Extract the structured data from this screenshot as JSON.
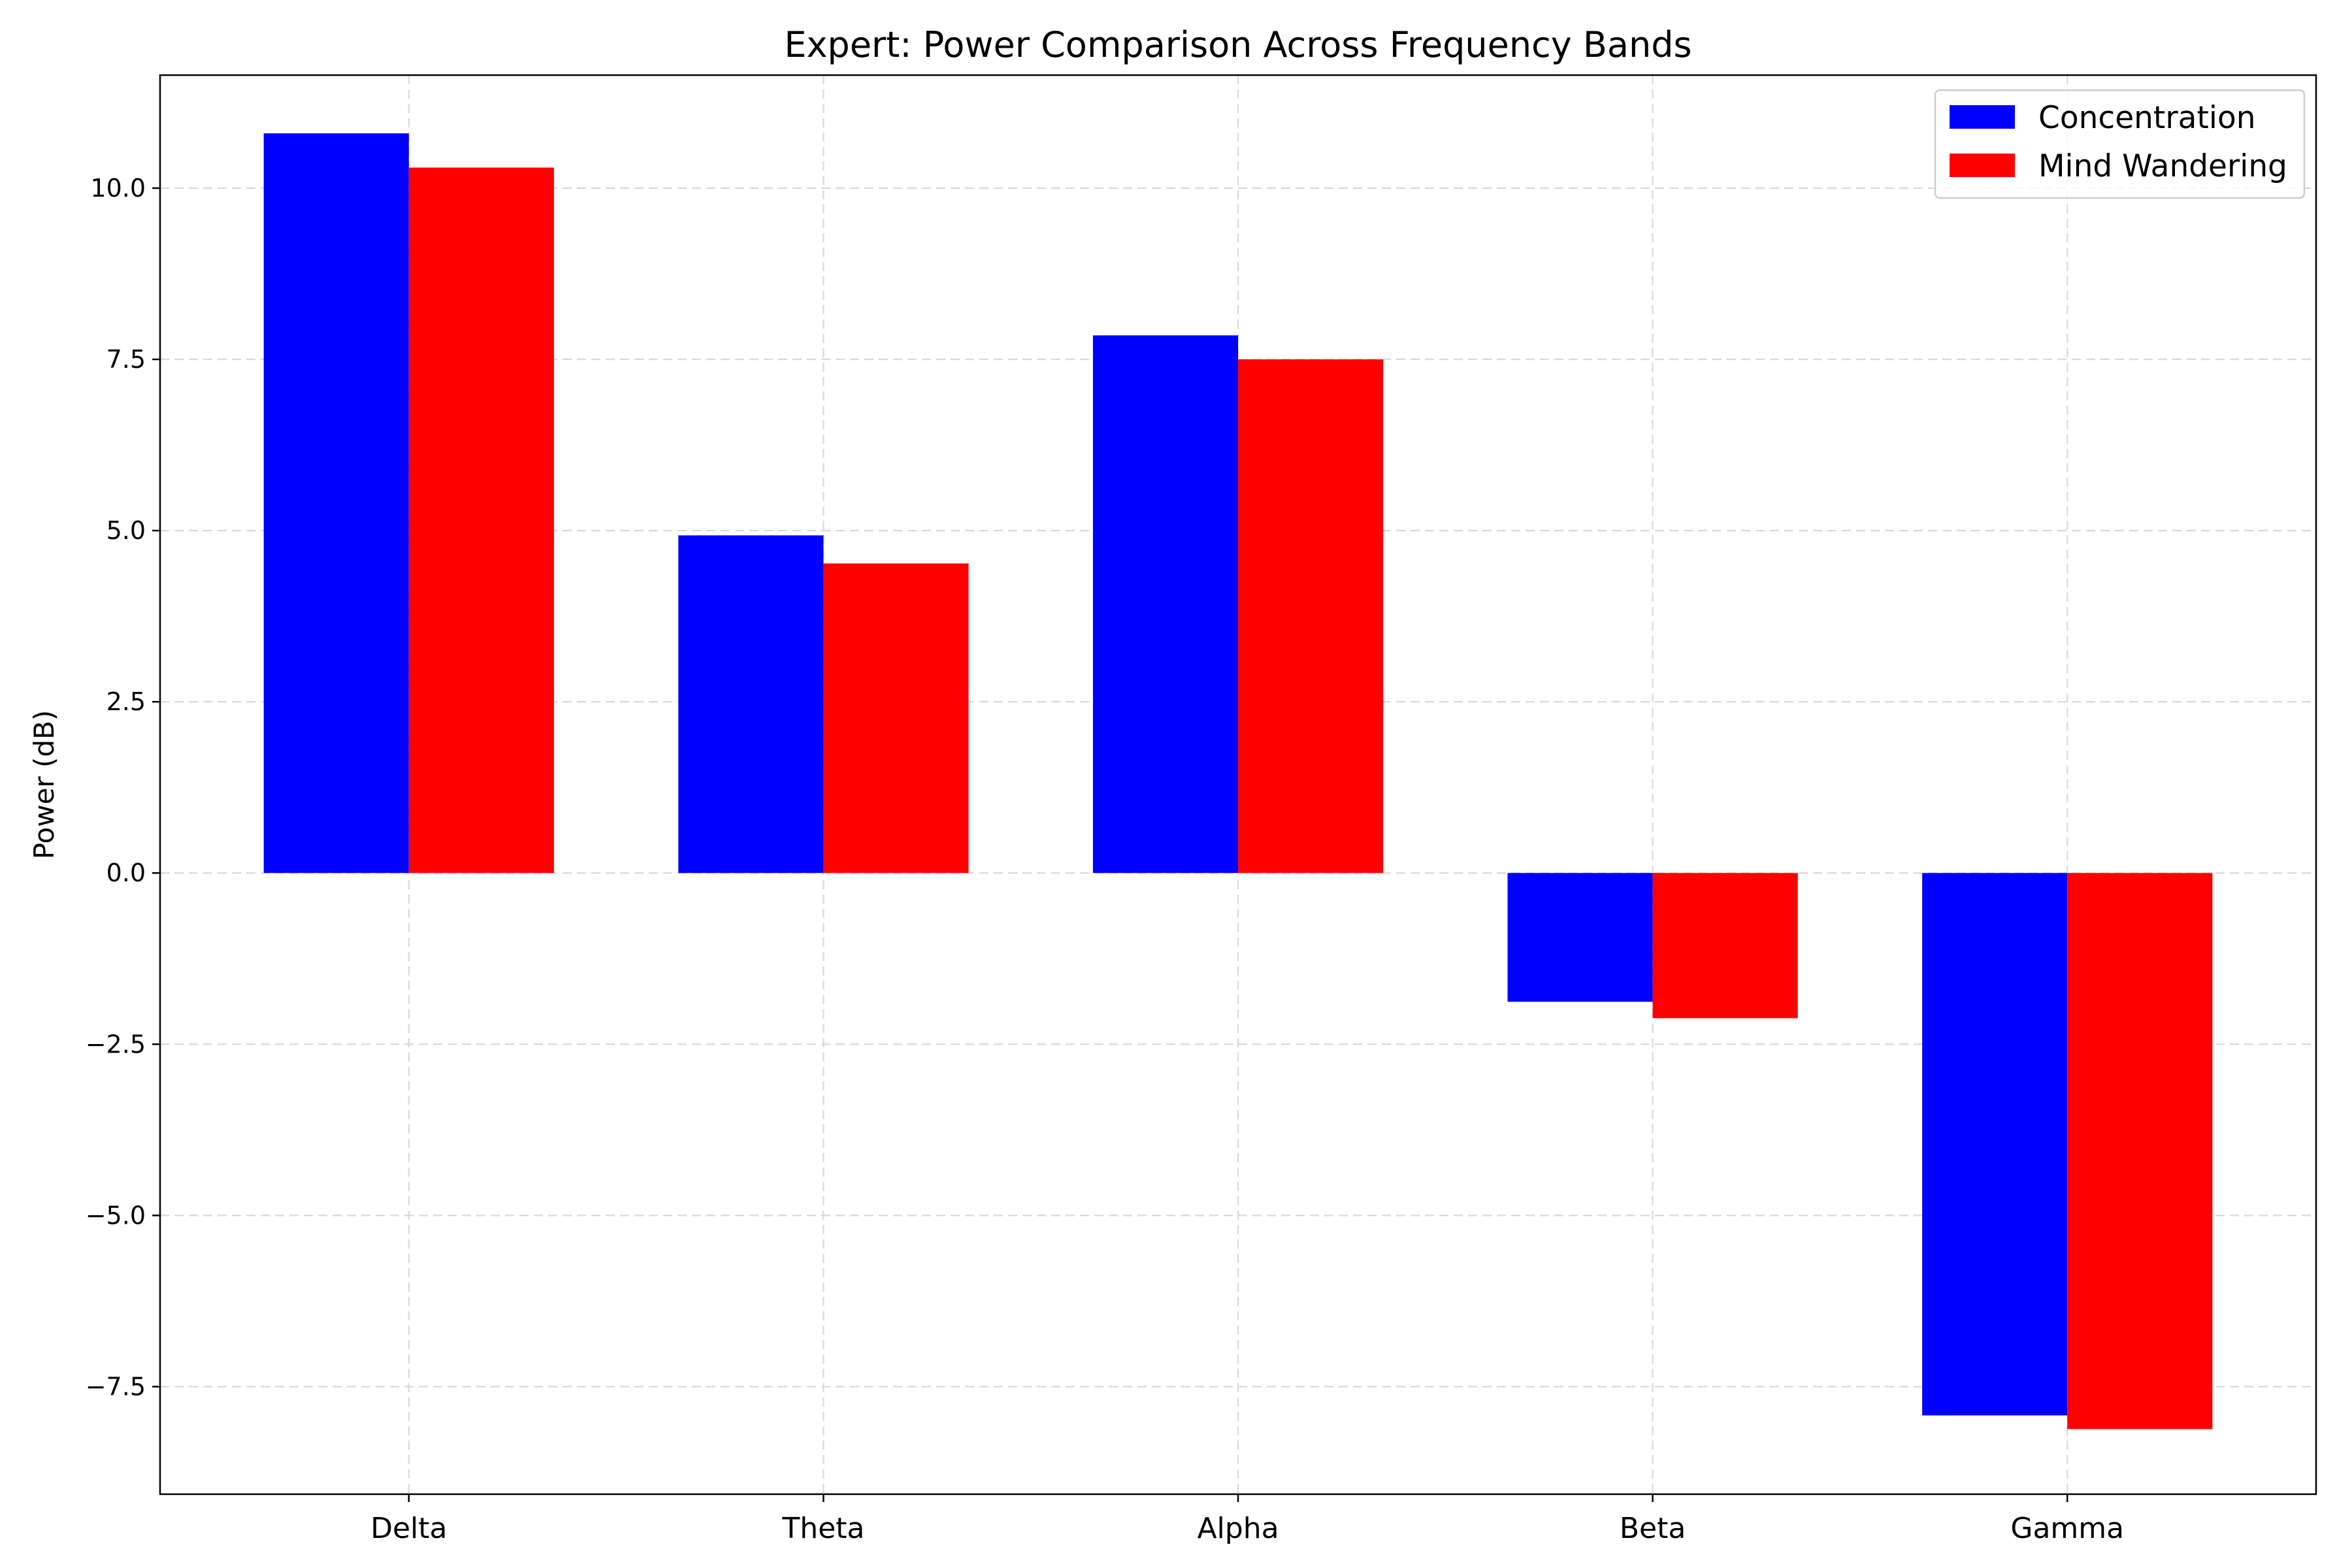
{
  "chart_data": {
    "type": "bar",
    "title": "Expert: Power Comparison Across Frequency Bands",
    "xlabel": "",
    "ylabel": "Power (dB)",
    "categories": [
      "Delta",
      "Theta",
      "Alpha",
      "Beta",
      "Gamma"
    ],
    "series": [
      {
        "name": "Concentration",
        "color": "#0000ff",
        "values": [
          10.8,
          4.93,
          7.85,
          -1.88,
          -7.92
        ]
      },
      {
        "name": "Mind Wandering",
        "color": "#ff0000",
        "values": [
          10.3,
          4.52,
          7.5,
          -2.12,
          -8.12
        ]
      }
    ],
    "ylim": [
      -9.07,
      11.65
    ],
    "yticks": [
      -7.5,
      -5.0,
      -2.5,
      0.0,
      2.5,
      5.0,
      7.5,
      10.0
    ],
    "ytick_labels": [
      "−7.5",
      "−5.0",
      "−2.5",
      "0.0",
      "2.5",
      "5.0",
      "7.5",
      "10.0"
    ],
    "grid": true,
    "legend_position": "top-right"
  }
}
